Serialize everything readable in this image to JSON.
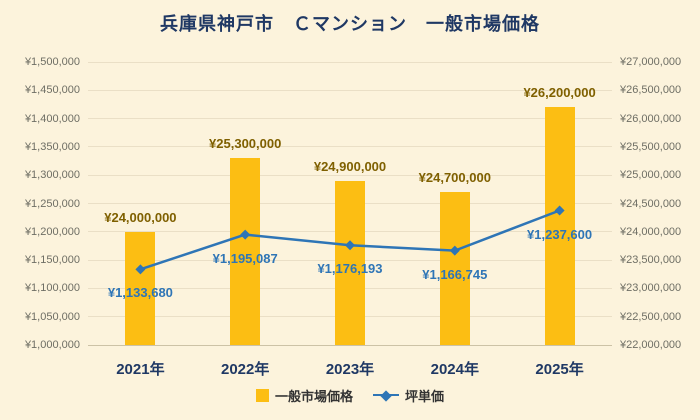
{
  "title": "兵庫県神戸市　Ｃマンション　一般市場価格",
  "chart_data": {
    "type": "bar",
    "subtype": "combo-bar-line",
    "categories": [
      "2021年",
      "2022年",
      "2023年",
      "2024年",
      "2025年"
    ],
    "series": [
      {
        "name": "一般市場価格",
        "type": "bar",
        "axis": "right",
        "values": [
          24000000,
          25300000,
          24900000,
          24700000,
          26200000
        ],
        "labels": [
          "¥24,000,000",
          "¥25,300,000",
          "¥24,900,000",
          "¥24,700,000",
          "¥26,200,000"
        ]
      },
      {
        "name": "坪単価",
        "type": "line",
        "axis": "left",
        "values": [
          1133680,
          1195087,
          1176193,
          1166745,
          1237600
        ],
        "labels": [
          "¥1,133,680",
          "¥1,195,087",
          "¥1,176,193",
          "¥1,166,745",
          "¥1,237,600"
        ]
      }
    ],
    "left_axis": {
      "min": 1000000,
      "max": 1500000,
      "step": 50000,
      "tick_labels": [
        "¥1,500,000",
        "¥1,450,000",
        "¥1,400,000",
        "¥1,350,000",
        "¥1,300,000",
        "¥1,250,000",
        "¥1,200,000",
        "¥1,150,000",
        "¥1,100,000",
        "¥1,050,000",
        "¥1,000,000"
      ]
    },
    "right_axis": {
      "min": 22000000,
      "max": 27000000,
      "step": 500000,
      "tick_labels": [
        "¥27,000,000",
        "¥26,500,000",
        "¥26,000,000",
        "¥25,500,000",
        "¥25,000,000",
        "¥24,500,000",
        "¥24,000,000",
        "¥23,500,000",
        "¥23,000,000",
        "¥22,500,000",
        "¥22,000,000"
      ]
    },
    "legend": [
      "一般市場価格",
      "坪単価"
    ],
    "legend_position": "bottom",
    "grid": true,
    "colors": {
      "background": "#FCF3DC",
      "bar": "#FCBE13",
      "line": "#2E75B6",
      "title": "#1F3864",
      "bar_label": "#7F6000",
      "line_label": "#2E75B6",
      "axis_tick": "#6E6E64",
      "category_label": "#1F3864",
      "gridline": "#EADFC6",
      "legend_text": "#333333"
    }
  }
}
